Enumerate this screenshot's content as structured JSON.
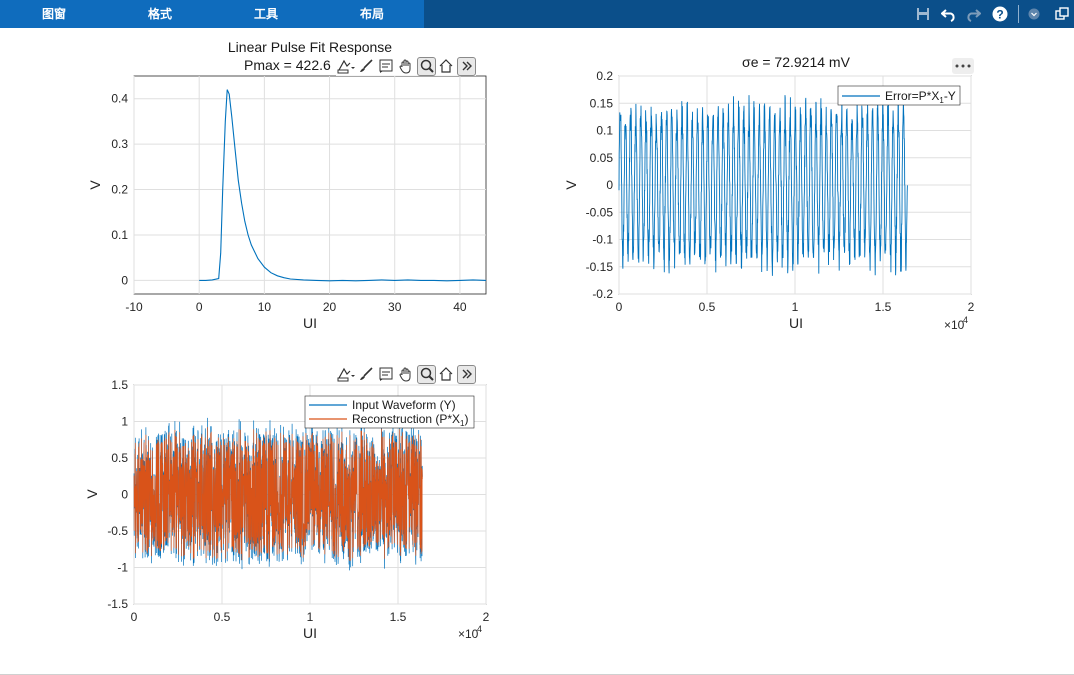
{
  "ribbon": {
    "tabs": [
      "图窗",
      "格式",
      "工具",
      "布局"
    ]
  },
  "colors": {
    "ribbon_bg": "#0b4f8a",
    "ribbon_tabs_bg": "#0f6cbd",
    "series_blue": "#0072BD",
    "series_orange": "#D95319"
  },
  "icons": [
    "save-icon",
    "undo-icon",
    "redo-icon",
    "help-icon",
    "ribbon-collapse-icon",
    "undock-icon",
    "data-tips-icon",
    "brush-icon",
    "legend-icon",
    "pan-icon",
    "zoom-icon",
    "home-icon",
    "more-icon"
  ],
  "chart_data": [
    {
      "type": "line",
      "title": "Linear Pulse Fit Response",
      "subtitle": "Pmax = 422.6",
      "xlabel": "UI",
      "ylabel": "V",
      "xlim": [
        -10,
        44
      ],
      "ylim": [
        -0.03,
        0.45
      ],
      "xticks": [
        "-10",
        "0",
        "10",
        "20",
        "30",
        "40"
      ],
      "yticks": [
        "0",
        "0.1",
        "0.2",
        "0.3",
        "0.4"
      ],
      "grid": true,
      "x": [
        0,
        1,
        2,
        3,
        3.3,
        3.6,
        4,
        4.3,
        4.6,
        5,
        5.5,
        6,
        6.5,
        7,
        7.5,
        8,
        9,
        10,
        11,
        12,
        13,
        14,
        16,
        18,
        20,
        22,
        24,
        26,
        28,
        30,
        32,
        34,
        36,
        38,
        40,
        42,
        44
      ],
      "series": [
        {
          "values": [
            0,
            0,
            0.001,
            0.004,
            0.06,
            0.2,
            0.35,
            0.42,
            0.41,
            0.36,
            0.29,
            0.22,
            0.17,
            0.13,
            0.1,
            0.078,
            0.048,
            0.029,
            0.017,
            0.01,
            0.006,
            0.003,
            0.001,
            0.0,
            -0.001,
            0.0,
            -0.001,
            0.0,
            0.001,
            0.0,
            0.001,
            0.0,
            0.0,
            -0.001,
            0.0,
            0.001,
            0.0
          ]
        }
      ]
    },
    {
      "type": "line",
      "title": "σe = 72.9214 mV",
      "xlabel": "UI",
      "ylabel": "V",
      "xlim": [
        0,
        20000
      ],
      "ylim": [
        -0.2,
        0.2
      ],
      "xticks": [
        "0",
        "0.5",
        "1",
        "1.5",
        "2"
      ],
      "xexponent": "×10",
      "xexponent_power": "4",
      "yticks": [
        "0.2",
        "0.15",
        "0.1",
        "0.05",
        "0",
        "-0.05",
        "-0.1",
        "-0.15",
        "-0.2"
      ],
      "grid": true,
      "legend": {
        "position": "top-right",
        "entries": [
          "Error=P*X",
          "1",
          "-Y"
        ]
      },
      "series": [
        {
          "data_extent": [
            0,
            16384
          ],
          "amplitude": [
            -0.17,
            0.165
          ],
          "oscillations": 56
        }
      ]
    },
    {
      "type": "line",
      "title": "",
      "xlabel": "UI",
      "ylabel": "V",
      "xlim": [
        0,
        20000
      ],
      "ylim": [
        -1.5,
        1.5
      ],
      "xticks": [
        "0",
        "0.5",
        "1",
        "1.5",
        "2"
      ],
      "xexponent": "×10",
      "xexponent_power": "4",
      "yticks": [
        "1.5",
        "1",
        "0.5",
        "0",
        "-0.5",
        "-1",
        "-1.5"
      ],
      "grid": true,
      "legend": {
        "position": "top-right",
        "entries": [
          "Input Waveform (Y)",
          "Reconstruction (P*X",
          "1",
          ")"
        ]
      },
      "series": [
        {
          "data_extent": [
            0,
            16384
          ],
          "amplitude": [
            -1.05,
            1.05
          ]
        },
        {
          "data_extent": [
            0,
            16384
          ],
          "amplitude": [
            -0.95,
            0.95
          ]
        }
      ]
    }
  ]
}
